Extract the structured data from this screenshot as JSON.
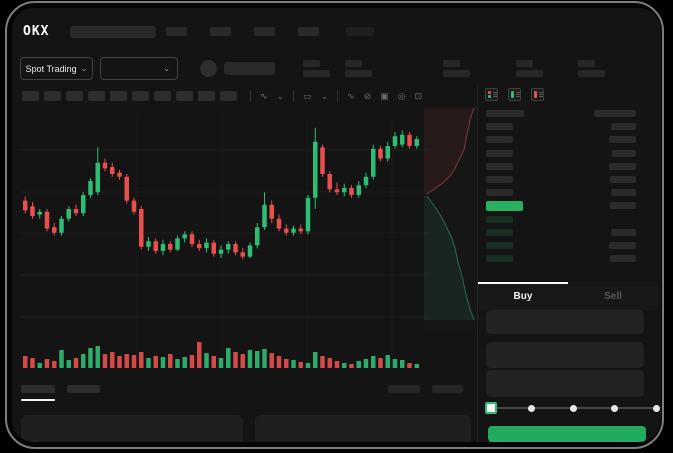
{
  "colors": {
    "up": "#2fbd74",
    "down": "#e8504e",
    "last_price_highlight": "#27b05f",
    "submit_button": "#22ab5f",
    "grid": "rgba(255,255,255,0.045)"
  },
  "header": {
    "logo": "OKX",
    "search_placeholder": "",
    "nav_placeholder_count": 4,
    "right_placeholder_count": 1
  },
  "market_bar": {
    "market_selector": {
      "label": "Spot Trading",
      "chevron": "⌄"
    },
    "pair_selector": {
      "value": "",
      "chevron": "⌄"
    },
    "coin_icon": "coin-avatar",
    "price_placeholder": "",
    "stat_block_count": 5
  },
  "toolbar": {
    "interval_slot_count": 10,
    "icons": [
      {
        "name": "chart-type-icon",
        "glyph": "∿"
      },
      {
        "name": "chevron-down-icon",
        "glyph": "⌄"
      },
      {
        "name": "divider",
        "glyph": ""
      },
      {
        "name": "indicator-icon",
        "glyph": "▭"
      },
      {
        "name": "chevron-down-icon",
        "glyph": "⌄"
      },
      {
        "name": "divider",
        "glyph": ""
      },
      {
        "name": "line-tool-icon",
        "glyph": "∿"
      },
      {
        "name": "compare-icon",
        "glyph": "⊘"
      },
      {
        "name": "camera-icon",
        "glyph": "▣"
      },
      {
        "name": "settings-icon",
        "glyph": "◎"
      },
      {
        "name": "fullscreen-icon",
        "glyph": "⊡"
      }
    ]
  },
  "chart_data": {
    "type": "candlestick",
    "title": "",
    "xlabel": "",
    "ylabel": "",
    "axes_labels_visible": false,
    "grid": "faint horizontal lines",
    "price_scale": "normalized 0-100 (no numeric labels visible in mockup)",
    "series": [
      {
        "name": "price-ohlc",
        "ohlc": [
          [
            46,
            49,
            37,
            39
          ],
          [
            42,
            45,
            33,
            35
          ],
          [
            36,
            40,
            33,
            38
          ],
          [
            38,
            40,
            24,
            26
          ],
          [
            27,
            30,
            21,
            23
          ],
          [
            23,
            35,
            21,
            33
          ],
          [
            33,
            42,
            31,
            40
          ],
          [
            40,
            43,
            35,
            37
          ],
          [
            37,
            52,
            35,
            50
          ],
          [
            50,
            62,
            48,
            60
          ],
          [
            52,
            84,
            50,
            73
          ],
          [
            73,
            76,
            67,
            69
          ],
          [
            70,
            73,
            63,
            65
          ],
          [
            66,
            68,
            61,
            63
          ],
          [
            63,
            65,
            44,
            46
          ],
          [
            46,
            48,
            36,
            38
          ],
          [
            40,
            42,
            11,
            13
          ],
          [
            13,
            20,
            10,
            17
          ],
          [
            17,
            19,
            8,
            10
          ],
          [
            10,
            18,
            7,
            15
          ],
          [
            15,
            17,
            9,
            11
          ],
          [
            11,
            21,
            10,
            19
          ],
          [
            19,
            24,
            16,
            22
          ],
          [
            22,
            24,
            13,
            15
          ],
          [
            15,
            18,
            10,
            12
          ],
          [
            12,
            19,
            9,
            16
          ],
          [
            16,
            18,
            6,
            8
          ],
          [
            8,
            14,
            5,
            11
          ],
          [
            11,
            17,
            8,
            15
          ],
          [
            15,
            17,
            7,
            9
          ],
          [
            9,
            12,
            4,
            6
          ],
          [
            6,
            16,
            5,
            14
          ],
          [
            14,
            30,
            12,
            27
          ],
          [
            27,
            52,
            25,
            43
          ],
          [
            43,
            46,
            30,
            33
          ],
          [
            33,
            36,
            24,
            26
          ],
          [
            26,
            29,
            21,
            23
          ],
          [
            23,
            28,
            21,
            26
          ],
          [
            26,
            29,
            22,
            24
          ],
          [
            24,
            50,
            22,
            48
          ],
          [
            48,
            98,
            40,
            88
          ],
          [
            84,
            86,
            63,
            65
          ],
          [
            65,
            67,
            52,
            54
          ],
          [
            54,
            59,
            50,
            52
          ],
          [
            52,
            58,
            49,
            55
          ],
          [
            55,
            57,
            48,
            50
          ],
          [
            50,
            60,
            48,
            57
          ],
          [
            57,
            66,
            55,
            63
          ],
          [
            63,
            86,
            61,
            83
          ],
          [
            83,
            85,
            74,
            76
          ],
          [
            76,
            88,
            74,
            85
          ],
          [
            85,
            95,
            83,
            92
          ],
          [
            86,
            96,
            84,
            93
          ],
          [
            93,
            95,
            83,
            85
          ],
          [
            85,
            92,
            83,
            90
          ]
        ]
      },
      {
        "name": "volume",
        "values": [
          12,
          10,
          5,
          9,
          7,
          18,
          8,
          10,
          14,
          20,
          22,
          14,
          16,
          12,
          14,
          13,
          16,
          10,
          12,
          11,
          14,
          9,
          11,
          13,
          26,
          15,
          12,
          10,
          20,
          16,
          14,
          18,
          17,
          19,
          15,
          12,
          9,
          8,
          6,
          5,
          16,
          12,
          10,
          7,
          5,
          4,
          7,
          9,
          12,
          10,
          13,
          9,
          8,
          5,
          4
        ]
      }
    ],
    "depth_overlay": {
      "description": "vertical cumulative depth shading beside price scale: asks above mid, bids below",
      "asks_line": [
        [
          50,
          2
        ],
        [
          46,
          14
        ],
        [
          44,
          24
        ],
        [
          42,
          34
        ],
        [
          40,
          44
        ],
        [
          36,
          52
        ],
        [
          33,
          58
        ],
        [
          30,
          64
        ],
        [
          26,
          70
        ],
        [
          20,
          76
        ],
        [
          12,
          82
        ],
        [
          3,
          88
        ]
      ],
      "bids_line": [
        [
          3,
          90
        ],
        [
          8,
          97
        ],
        [
          13,
          104
        ],
        [
          18,
          112
        ],
        [
          22,
          120
        ],
        [
          27,
          130
        ],
        [
          31,
          142
        ],
        [
          34,
          156
        ],
        [
          38,
          170
        ],
        [
          41,
          184
        ],
        [
          44,
          196
        ],
        [
          47,
          206
        ],
        [
          50,
          214
        ]
      ]
    }
  },
  "order_book": {
    "view_modes": [
      {
        "name": "orderbook-split-view-icon",
        "bars": [
          "down",
          "up"
        ]
      },
      {
        "name": "orderbook-bids-view-icon",
        "bars": [
          "up"
        ]
      },
      {
        "name": "orderbook-asks-view-icon",
        "bars": [
          "down"
        ]
      }
    ],
    "rows": [
      {
        "type": "header",
        "left_w": 38,
        "right_w": 42
      },
      {
        "type": "ask",
        "left_w": 27,
        "right_w": 25
      },
      {
        "type": "ask",
        "left_w": 27,
        "right_w": 27
      },
      {
        "type": "ask",
        "left_w": 27,
        "right_w": 24
      },
      {
        "type": "ask",
        "left_w": 27,
        "right_w": 27
      },
      {
        "type": "ask",
        "left_w": 27,
        "right_w": 26
      },
      {
        "type": "ask",
        "left_w": 27,
        "right_w": 25
      },
      {
        "type": "last",
        "left_w": 37,
        "right_w": 26
      },
      {
        "type": "bid",
        "left_w": 27,
        "right_w": 0
      },
      {
        "type": "bid",
        "left_w": 27,
        "right_w": 25
      },
      {
        "type": "bid",
        "left_w": 27,
        "right_w": 27
      },
      {
        "type": "bid",
        "left_w": 27,
        "right_w": 26
      }
    ]
  },
  "trade_panel": {
    "tabs": [
      {
        "label": "Buy",
        "active": true
      },
      {
        "label": "Sell",
        "active": false
      }
    ],
    "input_box_count": 3,
    "slider": {
      "stops_percent": [
        0,
        25,
        50,
        75,
        100
      ],
      "value_percent": 0
    },
    "submit_label": ""
  },
  "bottom_section": {
    "tab_count": 2,
    "active_tab_index": 0,
    "right_placeholder_count": 2,
    "panel_count": 2
  }
}
